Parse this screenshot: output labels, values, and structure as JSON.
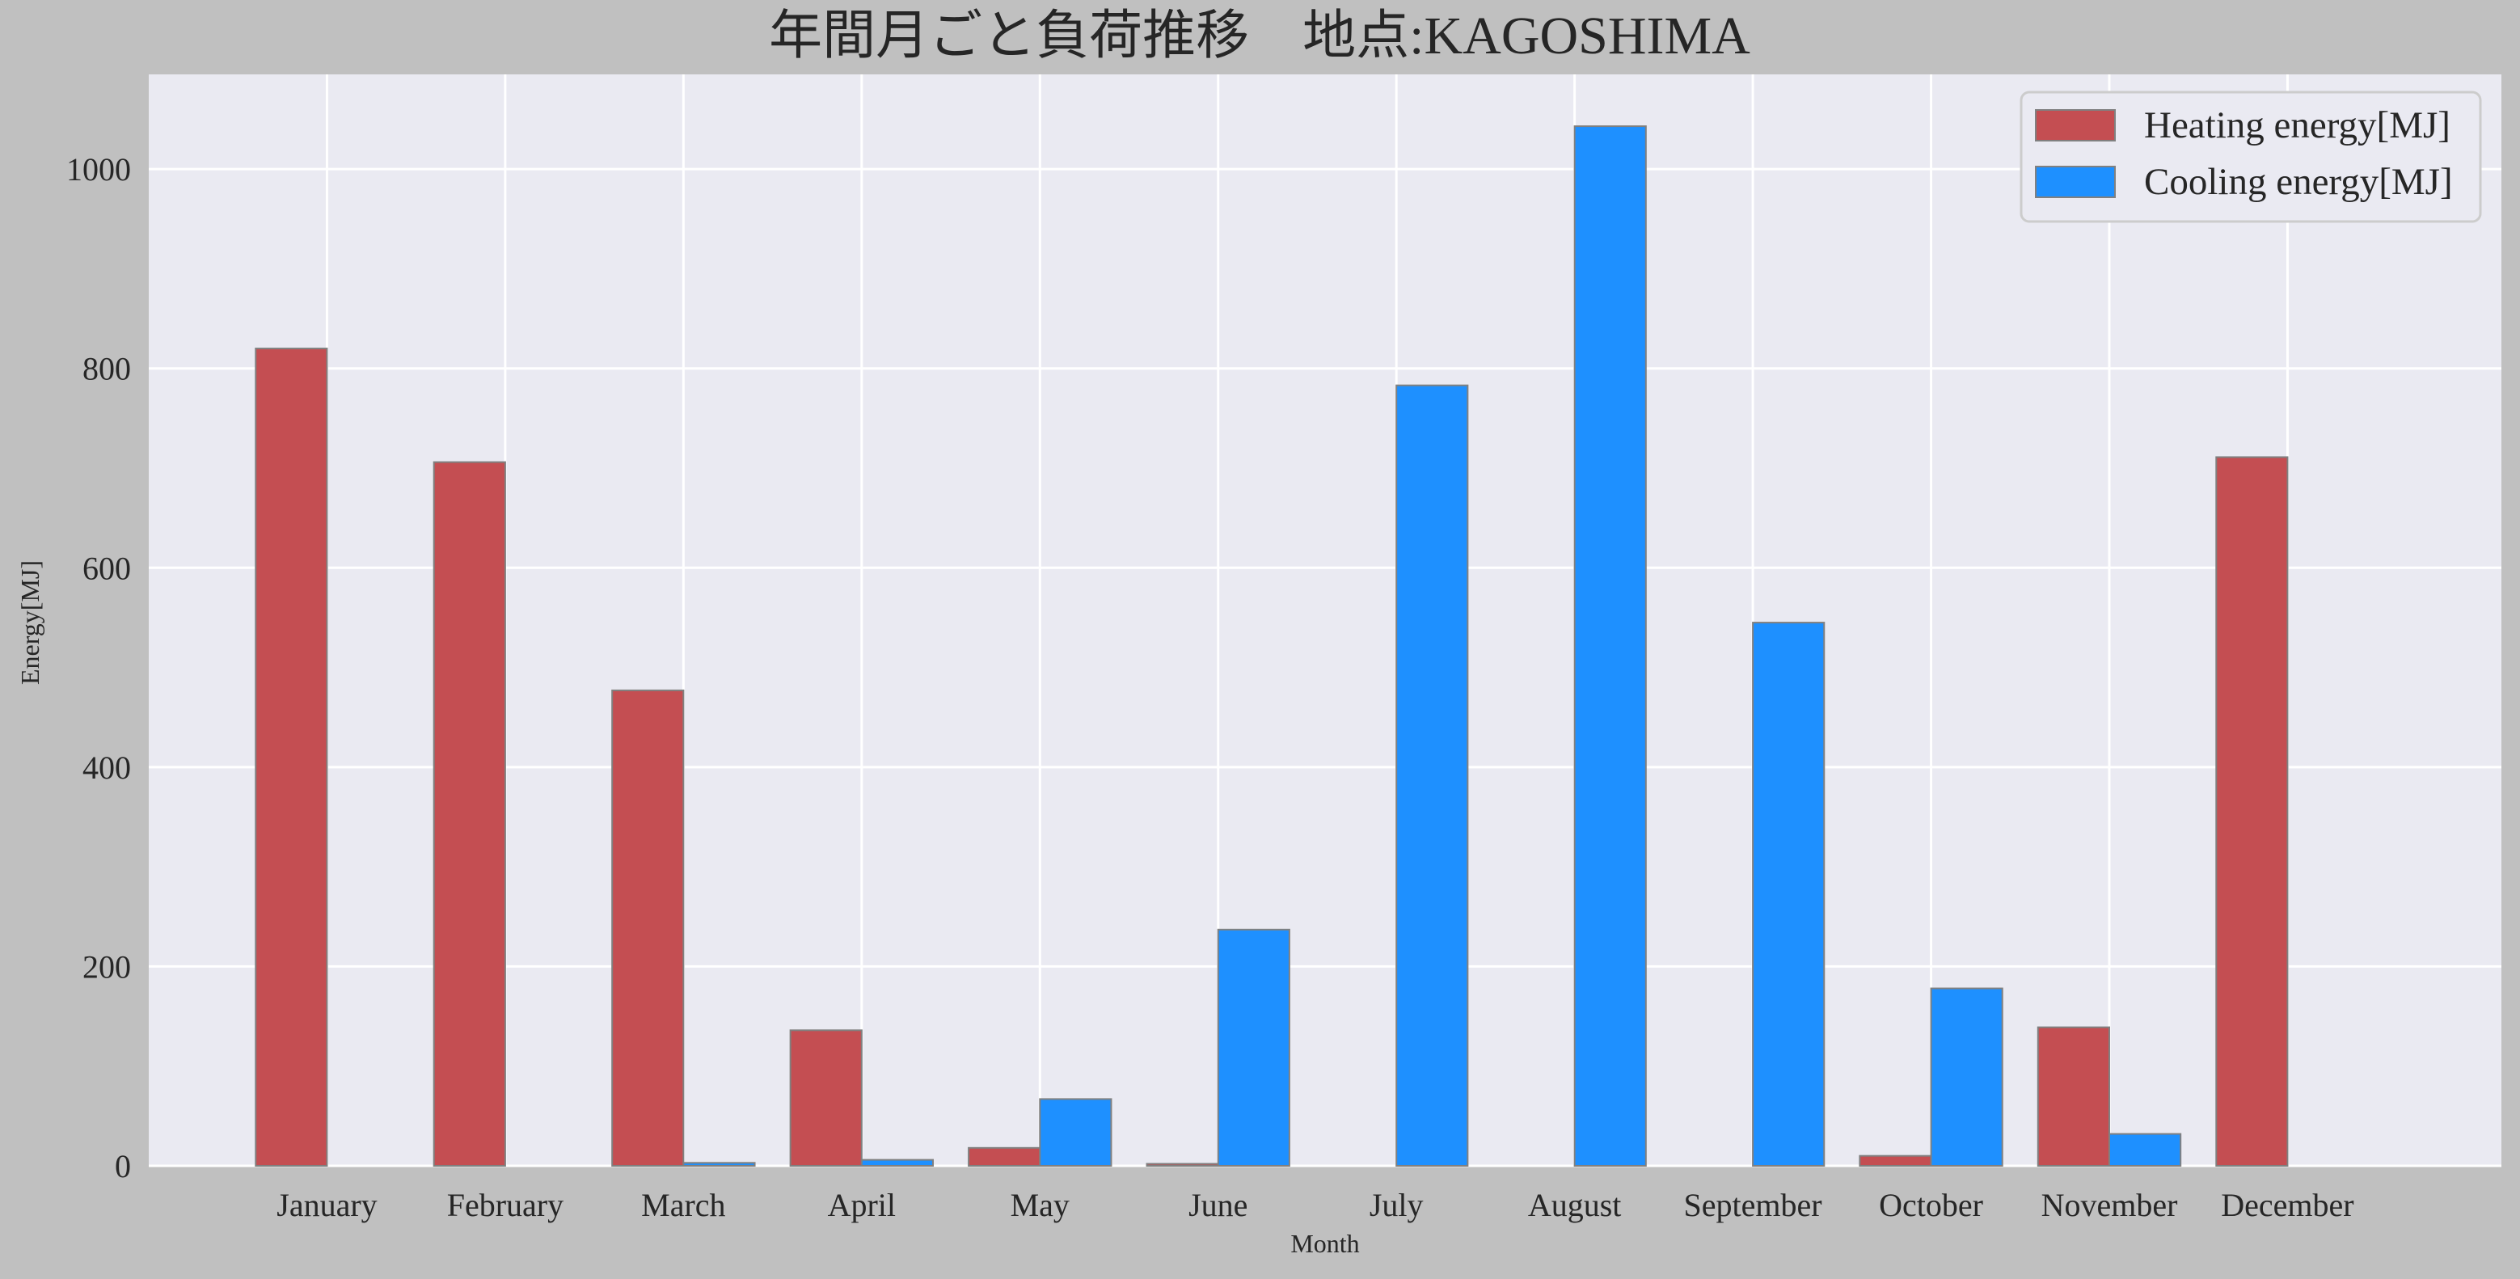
{
  "chart_data": {
    "type": "bar",
    "title": "年間月ごと負荷推移　地点:KAGOSHIMA",
    "xlabel": "Month",
    "ylabel": "Energy[MJ]",
    "ylim": [
      0,
      1095
    ],
    "yticks": [
      0,
      200,
      400,
      600,
      800,
      1000
    ],
    "grid": true,
    "legend_position": "top-right",
    "categories": [
      "January",
      "February",
      "March",
      "April",
      "May",
      "June",
      "July",
      "August",
      "September",
      "October",
      "November",
      "December"
    ],
    "series": [
      {
        "name": "Heating energy[MJ]",
        "color": "#c44e52",
        "values": [
          820,
          706,
          477,
          136,
          18,
          2,
          0,
          0,
          0,
          10,
          139,
          711
        ]
      },
      {
        "name": "Cooling energy[MJ]",
        "color": "#1e90ff",
        "values": [
          0,
          0,
          3,
          6,
          67,
          237,
          783,
          1043,
          545,
          178,
          32,
          0
        ]
      }
    ]
  }
}
